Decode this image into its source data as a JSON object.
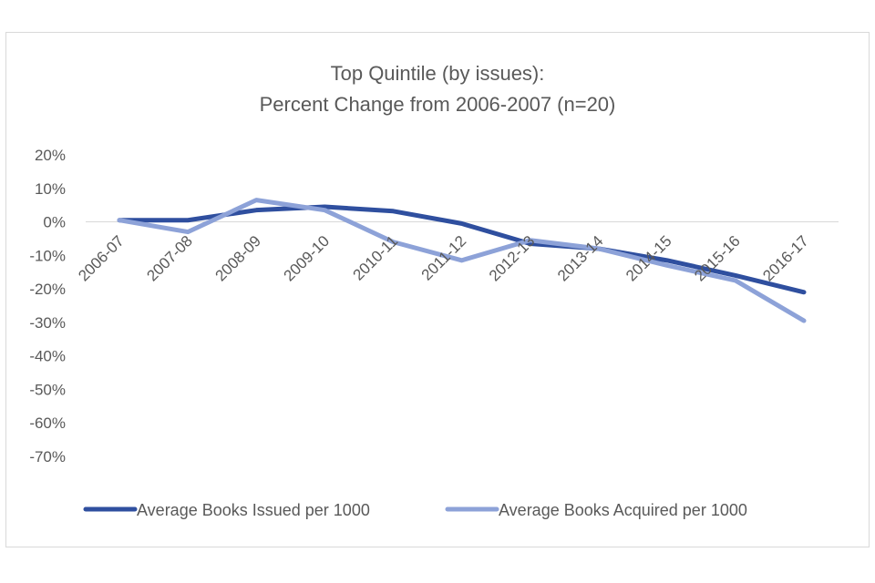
{
  "chart_data": {
    "type": "line",
    "title": [
      "Top Quintile (by issues):",
      "Percent Change from 2006-2007 (n=20)"
    ],
    "categories": [
      "2006-07",
      "2007-08",
      "2008-09",
      "2009-10",
      "2010-11",
      "2011-12",
      "2012-13",
      "2013-14",
      "2014-15",
      "2015-16",
      "2016-17"
    ],
    "y_tick_labels": [
      "20%",
      "10%",
      "0%",
      "-10%",
      "-20%",
      "-30%",
      "-40%",
      "-50%",
      "-60%",
      "-70%"
    ],
    "y_ticks": [
      20,
      10,
      0,
      -10,
      -20,
      -30,
      -40,
      -50,
      -60,
      -70
    ],
    "ylim": [
      -70,
      20
    ],
    "xlabel": "",
    "ylabel": "",
    "legend_position": "bottom",
    "series": [
      {
        "name": "Average Books Issued per 1000",
        "color": "#2f4f9f",
        "values": [
          0.5,
          0.5,
          3.5,
          4.5,
          3.2,
          -0.5,
          -6.5,
          -8,
          -11.5,
          -16,
          -21
        ]
      },
      {
        "name": "Average Books Acquired per 1000",
        "color": "#8da2d8",
        "values": [
          0.5,
          -3,
          6.5,
          3.5,
          -6,
          -11.5,
          -5.5,
          -8,
          -13,
          -17.5,
          -29.5
        ]
      }
    ]
  }
}
